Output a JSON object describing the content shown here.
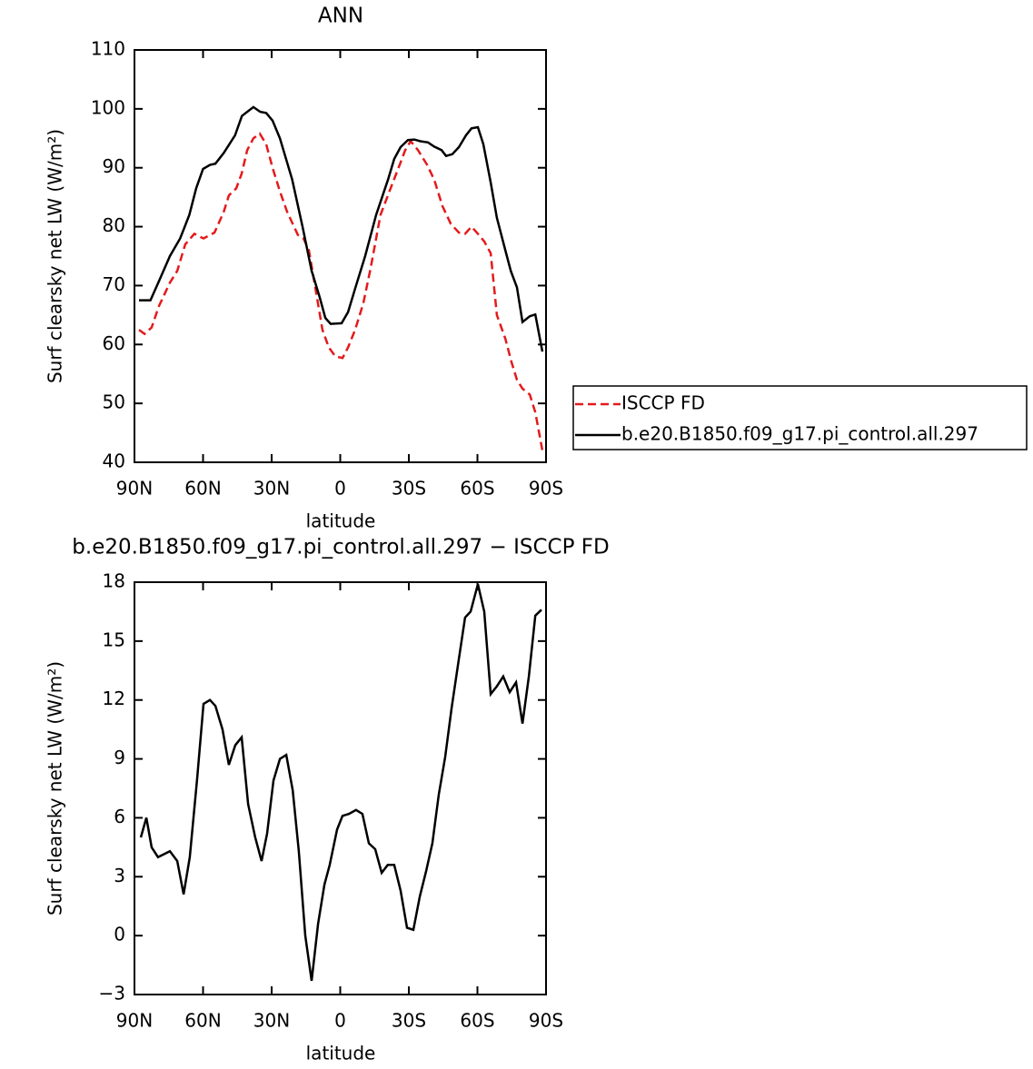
{
  "chart_data": [
    {
      "type": "line",
      "title": "ANN",
      "xlabel": "latitude",
      "ylabel": "Surf clearsky net LW (W/m²)",
      "xlim": [
        90,
        -90
      ],
      "xticks": [
        {
          "value": 90,
          "label": "90N"
        },
        {
          "value": 60,
          "label": "60N"
        },
        {
          "value": 30,
          "label": "30N"
        },
        0,
        {
          "value": -30,
          "label": "30S"
        },
        {
          "value": -60,
          "label": "60S"
        },
        {
          "value": -90,
          "label": "90S"
        }
      ],
      "ylim": [
        40,
        110
      ],
      "yticks": [
        40,
        50,
        60,
        70,
        80,
        90,
        100,
        110
      ],
      "legend": "right",
      "series": [
        {
          "name": "ISCCP FD",
          "color": "#e41a1c",
          "dash": true,
          "x": [
            88,
            85.6,
            82.5,
            79.3,
            74.5,
            71.3,
            67.8,
            63.8,
            61.4,
            59.8,
            55,
            51,
            48.7,
            45.5,
            43.1,
            40.7,
            38,
            35.2,
            32.4,
            29.6,
            26.4,
            23.2,
            18.5,
            16.1,
            13.7,
            11.3,
            7.8,
            5,
            2.2,
            -1,
            -3.4,
            -6.5,
            -10.1,
            -13.3,
            -17.6,
            -22,
            -26,
            -28.4,
            -30.8,
            -34,
            -38,
            -41.1,
            -44.7,
            -48.3,
            -51.9,
            -54.6,
            -57.4,
            -60.2,
            -63,
            -65.8,
            -68.5,
            -72.2,
            -74.9,
            -77.3,
            -79.7,
            -82.9,
            -85.3,
            -88.4
          ],
          "values": [
            62.5,
            61.8,
            62.9,
            66.5,
            70.5,
            72.5,
            77,
            78.8,
            78.3,
            78,
            79,
            82.5,
            85.3,
            86.5,
            89,
            93,
            95,
            95.8,
            94,
            90,
            86,
            82.5,
            78.6,
            78,
            76,
            70.5,
            62.5,
            59.5,
            58,
            57.7,
            59.5,
            62.5,
            67,
            73,
            82,
            86.5,
            90.5,
            93,
            94.5,
            93,
            90.5,
            88,
            83.5,
            80.5,
            79,
            78.8,
            80,
            78.8,
            77.5,
            75.5,
            65,
            61,
            57,
            54,
            52.5,
            51.5,
            48.5,
            42
          ]
        },
        {
          "name": "b.e20.B1850.f09_g17.pi_control.all.297",
          "color": "#000000",
          "dash": false,
          "x": [
            88,
            83,
            79,
            74.5,
            70,
            66,
            63,
            60,
            57,
            54.6,
            51,
            46,
            43,
            38,
            35,
            32.4,
            29.6,
            26.4,
            21,
            16.5,
            12.5,
            9,
            6.5,
            4.2,
            -0.6,
            -3.4,
            -6.5,
            -10.9,
            -15.7,
            -20.9,
            -23.6,
            -26.4,
            -29.6,
            -32.4,
            -35,
            -38.4,
            -41.1,
            -44.3,
            -46.3,
            -49,
            -51.9,
            -55,
            -57.4,
            -60.2,
            -62.6,
            -65.8,
            -68.5,
            -72.2,
            -74.6,
            -77.3,
            -79.7,
            -82.9,
            -85.3,
            -88.4
          ],
          "values": [
            67.5,
            67.5,
            71,
            75,
            78,
            82,
            86.5,
            89.8,
            90.5,
            90.7,
            92.5,
            95.5,
            98.8,
            100.3,
            99.5,
            99.3,
            98,
            95,
            88,
            80,
            72.5,
            68,
            64.5,
            63.5,
            63.6,
            65.5,
            69.5,
            75,
            82,
            88,
            91.5,
            93.5,
            94.7,
            94.8,
            94.5,
            94.3,
            93.6,
            93,
            92,
            92.3,
            93.5,
            95.5,
            96.7,
            96.9,
            94,
            87.5,
            81.5,
            76,
            72.5,
            69.7,
            63.8,
            64.8,
            65.1,
            58.8
          ]
        }
      ]
    },
    {
      "type": "line",
      "title": "b.e20.B1850.f09_g17.pi_control.all.297 − ISCCP FD",
      "xlabel": "latitude",
      "ylabel": "Surf clearsky net LW (W/m²)",
      "xlim": [
        90,
        -90
      ],
      "xticks": [
        {
          "value": 90,
          "label": "90N"
        },
        {
          "value": 60,
          "label": "60N"
        },
        {
          "value": 30,
          "label": "30N"
        },
        0,
        {
          "value": -30,
          "label": "30S"
        },
        {
          "value": -60,
          "label": "60S"
        },
        {
          "value": -90,
          "label": "90S"
        }
      ],
      "ylim": [
        -3,
        18
      ],
      "yticks": [
        {
          "value": -3,
          "label": "−3"
        },
        0,
        3,
        6,
        9,
        12,
        15,
        18
      ],
      "color": "#000000",
      "x": [
        87.2,
        84.8,
        82.5,
        79.7,
        74.5,
        71.3,
        68.5,
        65.8,
        62.6,
        59.8,
        57,
        54.6,
        51.5,
        48.7,
        45.9,
        43.1,
        40.3,
        37.2,
        34.4,
        32,
        29.2,
        26.4,
        23.6,
        20.8,
        18.1,
        15.3,
        12.5,
        9.7,
        6.9,
        4.6,
        1.4,
        -1,
        -3.8,
        -6.9,
        -9.7,
        -12.5,
        -15.3,
        -18.1,
        -20.8,
        -23.6,
        -26.4,
        -29.2,
        -32,
        -34.8,
        -37.6,
        -40.3,
        -43.1,
        -45.9,
        -48.7,
        -51.9,
        -54.6,
        -57,
        -60.2,
        -63,
        -65.8,
        -68.5,
        -71.3,
        -74.1,
        -76.9,
        -79.7,
        -82.5,
        -85.3,
        -88
      ],
      "values": [
        5,
        6,
        4.5,
        4,
        4.3,
        3.8,
        2.1,
        4,
        8,
        11.8,
        12,
        11.7,
        10.5,
        8.7,
        9.7,
        10.1,
        6.7,
        5,
        3.8,
        5.2,
        7.9,
        9,
        9.2,
        7.4,
        4.3,
        0,
        -2.3,
        0.6,
        2.6,
        3.6,
        5.4,
        6.1,
        6.2,
        6.4,
        6.2,
        4.7,
        4.4,
        3.2,
        3.6,
        3.6,
        2.3,
        0.4,
        0.3,
        2,
        3.3,
        4.7,
        7.2,
        9.1,
        11.6,
        14.1,
        16.2,
        16.5,
        17.9,
        16.5,
        12.3,
        12.7,
        13.2,
        12.4,
        12.9,
        10.8,
        13.2,
        16.3,
        16.6
      ]
    }
  ]
}
